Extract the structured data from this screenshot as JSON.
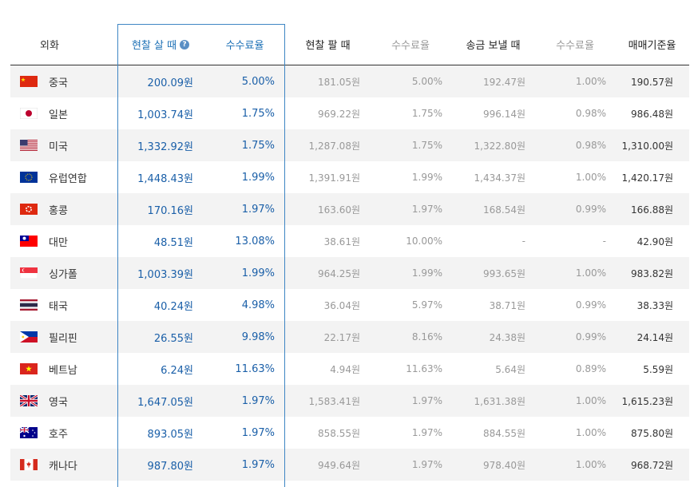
{
  "header": {
    "currency": "외화",
    "cash_buy": "현찰 살 때",
    "cash_buy_help": "?",
    "fee_rate_1": "수수료율",
    "cash_sell": "현찰 팔 때",
    "fee_rate_2": "수수료율",
    "remit_send": "송금 보낼 때",
    "fee_rate_3": "수수료율",
    "base_rate": "매매기준율"
  },
  "rows": [
    {
      "flag": "cn-flag",
      "name": "중국",
      "buy": "200.09원",
      "buy_fee": "5.00%",
      "sell": "181.05원",
      "sell_fee": "5.00%",
      "send": "192.47원",
      "send_fee": "1.00%",
      "base": "190.57원"
    },
    {
      "flag": "jp-flag",
      "name": "일본",
      "buy": "1,003.74원",
      "buy_fee": "1.75%",
      "sell": "969.22원",
      "sell_fee": "1.75%",
      "send": "996.14원",
      "send_fee": "0.98%",
      "base": "986.48원"
    },
    {
      "flag": "us-flag",
      "name": "미국",
      "buy": "1,332.92원",
      "buy_fee": "1.75%",
      "sell": "1,287.08원",
      "sell_fee": "1.75%",
      "send": "1,322.80원",
      "send_fee": "0.98%",
      "base": "1,310.00원"
    },
    {
      "flag": "eu-flag",
      "name": "유럽연합",
      "buy": "1,448.43원",
      "buy_fee": "1.99%",
      "sell": "1,391.91원",
      "sell_fee": "1.99%",
      "send": "1,434.37원",
      "send_fee": "1.00%",
      "base": "1,420.17원"
    },
    {
      "flag": "hk-flag",
      "name": "홍콩",
      "buy": "170.16원",
      "buy_fee": "1.97%",
      "sell": "163.60원",
      "sell_fee": "1.97%",
      "send": "168.54원",
      "send_fee": "0.99%",
      "base": "166.88원"
    },
    {
      "flag": "tw-flag",
      "name": "대만",
      "buy": "48.51원",
      "buy_fee": "13.08%",
      "sell": "38.61원",
      "sell_fee": "10.00%",
      "send": "-",
      "send_fee": "-",
      "base": "42.90원"
    },
    {
      "flag": "sg-flag",
      "name": "싱가폴",
      "buy": "1,003.39원",
      "buy_fee": "1.99%",
      "sell": "964.25원",
      "sell_fee": "1.99%",
      "send": "993.65원",
      "send_fee": "1.00%",
      "base": "983.82원"
    },
    {
      "flag": "th-flag",
      "name": "태국",
      "buy": "40.24원",
      "buy_fee": "4.98%",
      "sell": "36.04원",
      "sell_fee": "5.97%",
      "send": "38.71원",
      "send_fee": "0.99%",
      "base": "38.33원"
    },
    {
      "flag": "ph-flag",
      "name": "필리핀",
      "buy": "26.55원",
      "buy_fee": "9.98%",
      "sell": "22.17원",
      "sell_fee": "8.16%",
      "send": "24.38원",
      "send_fee": "0.99%",
      "base": "24.14원"
    },
    {
      "flag": "vn-flag",
      "name": "베트남",
      "buy": "6.24원",
      "buy_fee": "11.63%",
      "sell": "4.94원",
      "sell_fee": "11.63%",
      "send": "5.64원",
      "send_fee": "0.89%",
      "base": "5.59원"
    },
    {
      "flag": "gb-flag",
      "name": "영국",
      "buy": "1,647.05원",
      "buy_fee": "1.97%",
      "sell": "1,583.41원",
      "sell_fee": "1.97%",
      "send": "1,631.38원",
      "send_fee": "1.00%",
      "base": "1,615.23원"
    },
    {
      "flag": "au-flag",
      "name": "호주",
      "buy": "893.05원",
      "buy_fee": "1.97%",
      "sell": "858.55원",
      "sell_fee": "1.97%",
      "send": "884.55원",
      "send_fee": "1.00%",
      "base": "875.80원"
    },
    {
      "flag": "ca-flag",
      "name": "캐나다",
      "buy": "987.80원",
      "buy_fee": "1.97%",
      "sell": "949.64원",
      "sell_fee": "1.97%",
      "send": "978.40원",
      "send_fee": "1.00%",
      "base": "968.72원"
    }
  ],
  "colors": {
    "accent": "#1a6fb5",
    "highlight_border": "#3f86c4",
    "row_alt": "#f3f3f3",
    "muted": "#999999"
  }
}
